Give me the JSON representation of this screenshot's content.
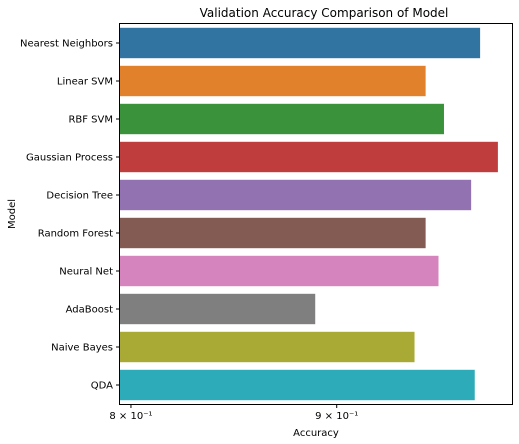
{
  "chart_data": {
    "type": "bar",
    "orientation": "horizontal",
    "title": "Validation Accuracy Comparison of Model",
    "xlabel": "Accuracy",
    "ylabel": "Model",
    "xscale": "log",
    "xlim": [
      0.795,
      0.995
    ],
    "grid": false,
    "legend": "none",
    "categories": [
      "Nearest Neighbors",
      "Linear SVM",
      "RBF SVM",
      "Gaussian Process",
      "Decision Tree",
      "Random Forest",
      "Neural Net",
      "AdaBoost",
      "Naive Bayes",
      "QDA"
    ],
    "values": [
      0.977,
      0.947,
      0.957,
      0.987,
      0.972,
      0.947,
      0.954,
      0.889,
      0.941,
      0.974
    ],
    "colors": [
      "#3274a1",
      "#e1812c",
      "#3a923a",
      "#c03d3e",
      "#9372b2",
      "#845b53",
      "#d684bd",
      "#7f7f7f",
      "#a9aa35",
      "#2eabb8"
    ],
    "xticks": [
      {
        "value": 0.8,
        "label": "8 × 10⁻¹"
      },
      {
        "value": 0.9,
        "label": "9 × 10⁻¹"
      }
    ]
  }
}
